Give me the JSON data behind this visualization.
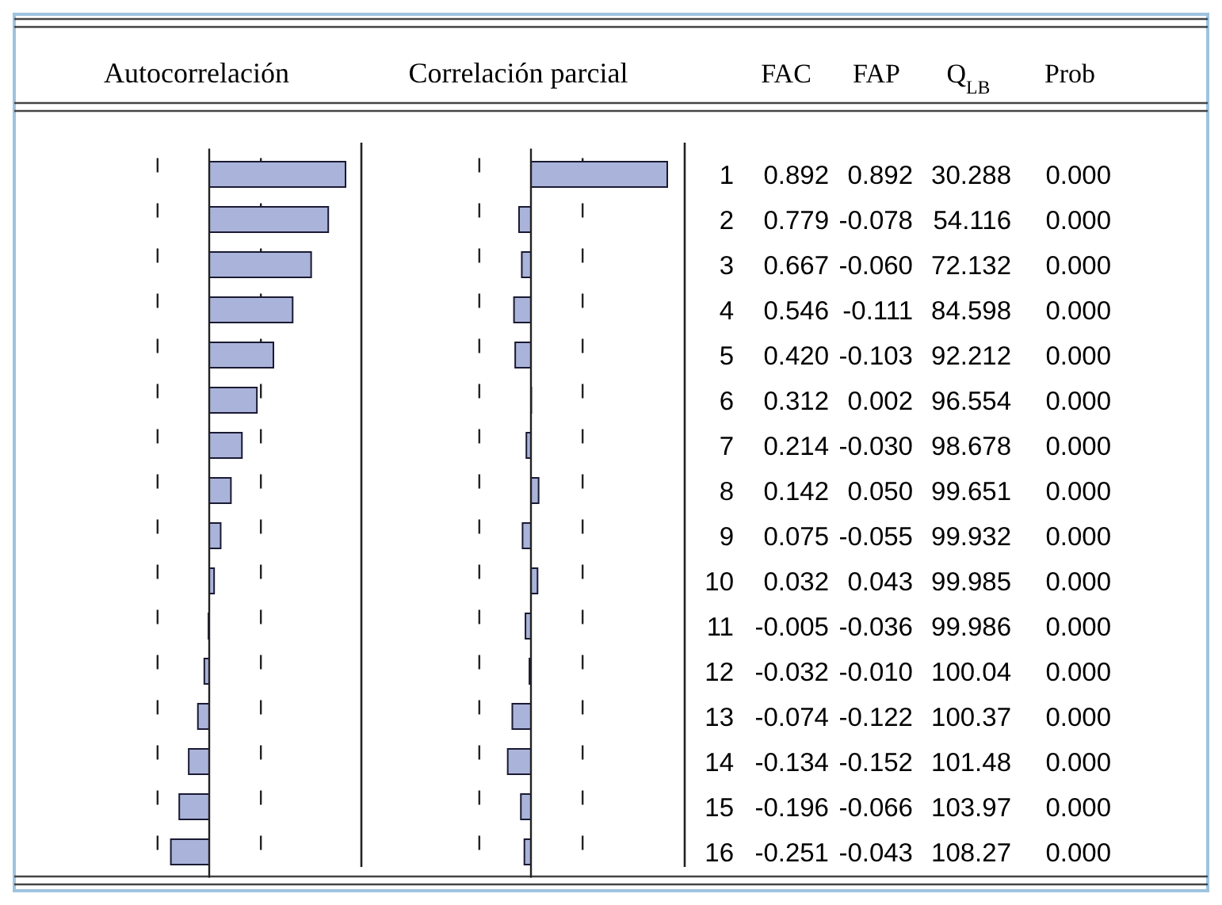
{
  "chart_data": [
    {
      "type": "bar",
      "orientation": "horizontal",
      "title": "Autocorrelación",
      "tick_labels": false,
      "categories": [
        "1",
        "2",
        "3",
        "4",
        "5",
        "6",
        "7",
        "8",
        "9",
        "10",
        "11",
        "12",
        "13",
        "14",
        "15",
        "16"
      ],
      "values": [
        0.892,
        0.779,
        0.667,
        0.546,
        0.42,
        0.312,
        0.214,
        0.142,
        0.075,
        0.032,
        -0.005,
        -0.032,
        -0.074,
        -0.134,
        -0.196,
        -0.251
      ],
      "value_labels": [
        "0.892",
        "0.779",
        "0.667",
        "0.546",
        "0.420",
        "0.312",
        "0.214",
        "0.142",
        "0.075",
        "0.032",
        "-0.005",
        "-0.032",
        "-0.074",
        "-0.134",
        "-0.196",
        "-0.251"
      ],
      "color": "#aab3d9",
      "ref_lines": [
        {
          "axis": "x",
          "value": -0.338,
          "line_style": "dashed"
        },
        {
          "axis": "x",
          "value": 0.338,
          "line_style": "dashed"
        }
      ]
    },
    {
      "type": "bar",
      "orientation": "horizontal",
      "title": "Correlación parcial",
      "categories": [
        "1",
        "2",
        "3",
        "4",
        "5",
        "6",
        "7",
        "8",
        "9",
        "10",
        "11",
        "12",
        "13",
        "14",
        "15",
        "16"
      ],
      "values": [
        0.892,
        -0.078,
        -0.06,
        -0.111,
        -0.103,
        0.002,
        -0.03,
        0.05,
        -0.055,
        0.043,
        -0.036,
        -0.01,
        -0.122,
        -0.152,
        -0.066,
        -0.043
      ],
      "value_labels": [
        "0.892",
        "-0.078",
        "-0.060",
        "-0.111",
        "-0.103",
        "0.002",
        "-0.030",
        "0.050",
        "-0.055",
        "0.043",
        "-0.036",
        "-0.010",
        "-0.122",
        "-0.152",
        "-0.066",
        "-0.043"
      ],
      "color": "#aab3d9",
      "ref_lines": [
        {
          "axis": "x",
          "value": -0.338,
          "line_style": "dashed"
        },
        {
          "axis": "x",
          "value": 0.338,
          "line_style": "dashed"
        }
      ]
    },
    {
      "type": "other",
      "annotations": [
        "FAC",
        "FAP",
        "Q$_{LB}$",
        "Prob",
        "30.288",
        "54.116",
        "72.132",
        "84.598",
        "92.212",
        "96.554",
        "98.678",
        "99.651",
        "99.932",
        "99.985",
        "99.986",
        "100.04",
        "100.37",
        "101.48",
        "103.97",
        "108.27",
        "0.000",
        "0.000",
        "0.000",
        "0.000",
        "0.000",
        "0.000",
        "0.000",
        "0.000",
        "0.000",
        "0.000",
        "0.000",
        "0.000",
        "0.000",
        "0.000",
        "0.000",
        "0.000"
      ]
    }
  ]
}
